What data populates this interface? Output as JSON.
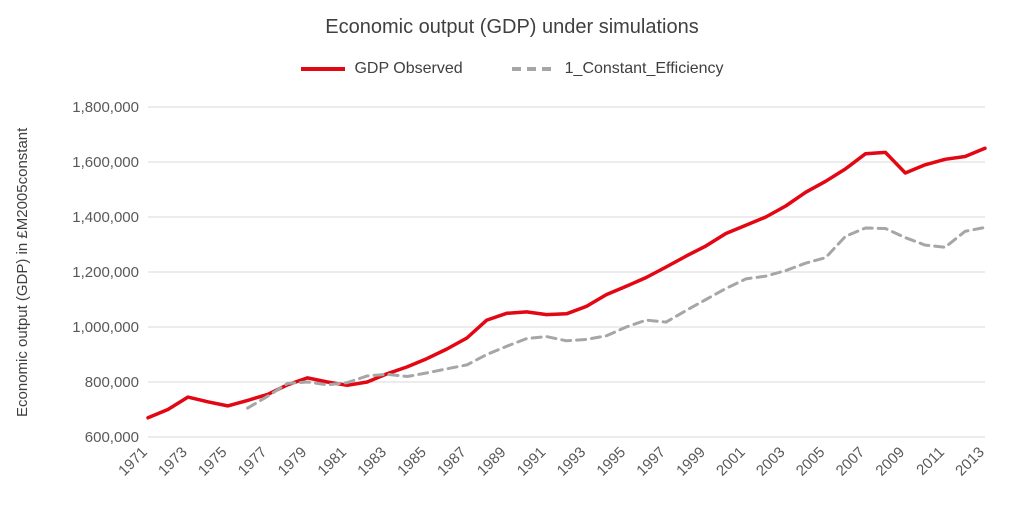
{
  "title": "Economic output (GDP) under simulations",
  "legend": {
    "items": [
      {
        "label": "GDP Observed"
      },
      {
        "label": "1_Constant_Efficiency"
      }
    ]
  },
  "chart_data": {
    "type": "line",
    "title": "Economic output (GDP) under simulations",
    "xlabel": "",
    "ylabel": "Economic output (GDP) in £M2005constant",
    "xlim": [
      1971,
      2013
    ],
    "ylim": [
      600000,
      1800000
    ],
    "ytick_step": 200000,
    "grid": "horizontal",
    "legend_position": "top",
    "xticks": [
      1971,
      1973,
      1975,
      1977,
      1979,
      1981,
      1983,
      1985,
      1987,
      1989,
      1991,
      1993,
      1995,
      1997,
      1999,
      2001,
      2003,
      2005,
      2007,
      2009,
      2011,
      2013
    ],
    "x": [
      1971,
      1972,
      1973,
      1974,
      1975,
      1976,
      1977,
      1978,
      1979,
      1980,
      1981,
      1982,
      1983,
      1984,
      1985,
      1986,
      1987,
      1988,
      1989,
      1990,
      1991,
      1992,
      1993,
      1994,
      1995,
      1996,
      1997,
      1998,
      1999,
      2000,
      2001,
      2002,
      2003,
      2004,
      2005,
      2006,
      2007,
      2008,
      2009,
      2010,
      2011,
      2012,
      2013
    ],
    "series": [
      {
        "name": "GDP Observed",
        "color": "#e30613",
        "style": "solid",
        "width": 3.5,
        "values": [
          670000,
          700000,
          745000,
          728000,
          713000,
          733000,
          755000,
          790000,
          815000,
          800000,
          788000,
          800000,
          830000,
          855000,
          885000,
          920000,
          960000,
          1025000,
          1050000,
          1055000,
          1045000,
          1048000,
          1075000,
          1118000,
          1148000,
          1180000,
          1218000,
          1258000,
          1295000,
          1340000,
          1370000,
          1400000,
          1440000,
          1490000,
          1530000,
          1575000,
          1630000,
          1635000,
          1560000,
          1590000,
          1610000,
          1620000,
          1650000
        ]
      },
      {
        "name": "1_Constant_Efficiency",
        "color": "#a6a6a6",
        "style": "dashed",
        "width": 3,
        "values": [
          null,
          null,
          null,
          null,
          null,
          705000,
          748000,
          795000,
          800000,
          790000,
          798000,
          822000,
          828000,
          820000,
          833000,
          848000,
          862000,
          900000,
          930000,
          958000,
          965000,
          950000,
          955000,
          968000,
          1000000,
          1025000,
          1018000,
          1060000,
          1100000,
          1140000,
          1175000,
          1185000,
          1205000,
          1232000,
          1252000,
          1330000,
          1360000,
          1358000,
          1325000,
          1298000,
          1290000,
          1348000,
          1362000
        ]
      }
    ]
  }
}
